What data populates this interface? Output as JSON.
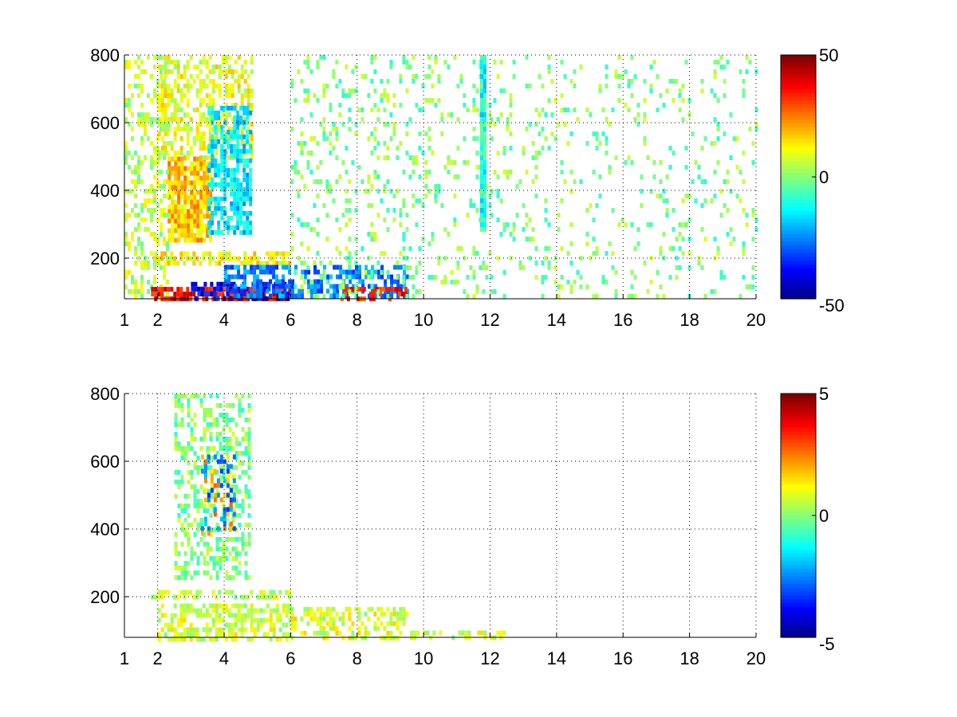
{
  "chart_data": [
    {
      "type": "heatmap",
      "title": "",
      "xlabel": "",
      "ylabel": "",
      "xlim": [
        1,
        20
      ],
      "ylim": [
        80,
        800
      ],
      "xticks": [
        1,
        2,
        4,
        6,
        8,
        10,
        12,
        14,
        16,
        18,
        20
      ],
      "yticks": [
        200,
        400,
        600,
        800
      ],
      "grid": true,
      "colormap": "jet",
      "clim": [
        -50,
        50
      ],
      "colorbar_ticks": [
        50,
        0,
        -50
      ],
      "regions": [
        {
          "x": [
            2.3,
            3.6
          ],
          "y": [
            250,
            500
          ],
          "value": 18,
          "density": 0.85
        },
        {
          "x": [
            1.0,
            2.3
          ],
          "y": [
            80,
            800
          ],
          "value": 6,
          "density": 0.35
        },
        {
          "x": [
            2.0,
            4.8
          ],
          "y": [
            500,
            800
          ],
          "value": 10,
          "density": 0.5
        },
        {
          "x": [
            3.5,
            4.8
          ],
          "y": [
            280,
            650
          ],
          "value": -15,
          "density": 0.65
        },
        {
          "x": [
            1.8,
            6.0
          ],
          "y": [
            80,
            115
          ],
          "value": 38,
          "density": 0.8
        },
        {
          "x": [
            3.0,
            6.0
          ],
          "y": [
            80,
            130
          ],
          "value": -38,
          "density": 0.55
        },
        {
          "x": [
            1.8,
            6.0
          ],
          "y": [
            190,
            220
          ],
          "value": 12,
          "density": 0.6
        },
        {
          "x": [
            4.0,
            9.5
          ],
          "y": [
            90,
            180
          ],
          "value": -25,
          "density": 0.55
        },
        {
          "x": [
            7.5,
            9.5
          ],
          "y": [
            80,
            115
          ],
          "value": 35,
          "density": 0.45
        },
        {
          "x": [
            6.0,
            12.0
          ],
          "y": [
            80,
            800
          ],
          "value": 0,
          "density": 0.15
        },
        {
          "x": [
            12.0,
            20.0
          ],
          "y": [
            80,
            800
          ],
          "value": 0,
          "density": 0.1
        },
        {
          "x": [
            11.7,
            11.85
          ],
          "y": [
            280,
            800
          ],
          "value": -10,
          "density": 1.0
        }
      ]
    },
    {
      "type": "heatmap",
      "title": "",
      "xlabel": "",
      "ylabel": "",
      "xlim": [
        1,
        20
      ],
      "ylim": [
        80,
        800
      ],
      "xticks": [
        1,
        2,
        4,
        6,
        8,
        10,
        12,
        14,
        16,
        18,
        20
      ],
      "yticks": [
        200,
        400,
        600,
        800
      ],
      "grid": true,
      "colormap": "jet",
      "clim": [
        -5,
        5
      ],
      "colorbar_ticks": [
        5,
        0,
        -5
      ],
      "regions": [
        {
          "x": [
            2.5,
            4.8
          ],
          "y": [
            250,
            800
          ],
          "value": 0,
          "density": 0.4
        },
        {
          "x": [
            2.0,
            6.0
          ],
          "y": [
            80,
            180
          ],
          "value": 0.8,
          "density": 0.6
        },
        {
          "x": [
            1.8,
            6.0
          ],
          "y": [
            195,
            220
          ],
          "value": 0.6,
          "density": 0.5
        },
        {
          "x": [
            6.0,
            9.5
          ],
          "y": [
            80,
            170
          ],
          "value": 0.9,
          "density": 0.45
        },
        {
          "x": [
            9.5,
            12.5
          ],
          "y": [
            80,
            100
          ],
          "value": 0.8,
          "density": 0.45
        },
        {
          "x": [
            3.3,
            4.3
          ],
          "y": [
            380,
            620
          ],
          "value": 2,
          "density": 0.25
        },
        {
          "x": [
            3.3,
            4.3
          ],
          "y": [
            380,
            620
          ],
          "value": -2.5,
          "density": 0.2
        }
      ]
    }
  ]
}
